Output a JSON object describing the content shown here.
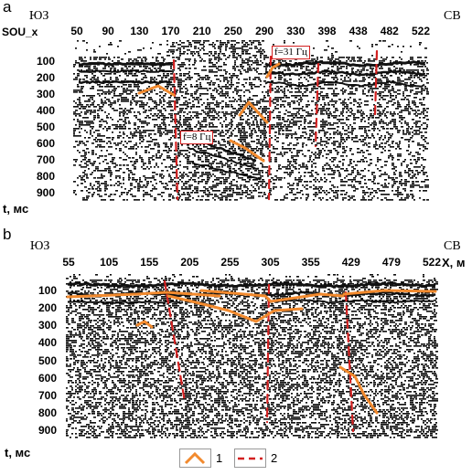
{
  "panel_a": {
    "letter": "a",
    "left_dir": "ЮЗ",
    "right_dir": "СВ",
    "x_axis_label": "SOU_x",
    "x_ticks": [
      "50",
      "90",
      "130",
      "170",
      "210",
      "250",
      "290",
      "330",
      "398",
      "438",
      "482",
      "522"
    ],
    "y_ticks": [
      "100",
      "200",
      "300",
      "400",
      "500",
      "600",
      "700",
      "800",
      "900"
    ],
    "y_axis_label": "t, мс",
    "freq_labels": [
      "f=8 Гц",
      "f=31 Гц"
    ]
  },
  "panel_b": {
    "letter": "b",
    "left_dir": "ЮЗ",
    "right_dir": "СВ",
    "x_ticks": [
      "55",
      "105",
      "155",
      "205",
      "255",
      "305",
      "355",
      "429",
      "479",
      "522"
    ],
    "x_axis_label": "X, м",
    "y_ticks": [
      "100",
      "200",
      "300",
      "400",
      "500",
      "600",
      "700",
      "800",
      "900"
    ],
    "y_axis_label": "t, мс"
  },
  "legend": {
    "item1_label": "1",
    "item2_label": "2"
  },
  "colors": {
    "horizon_orange": "#f28a2e",
    "fault_red": "#d32020",
    "seismic_ink": "#111111"
  }
}
